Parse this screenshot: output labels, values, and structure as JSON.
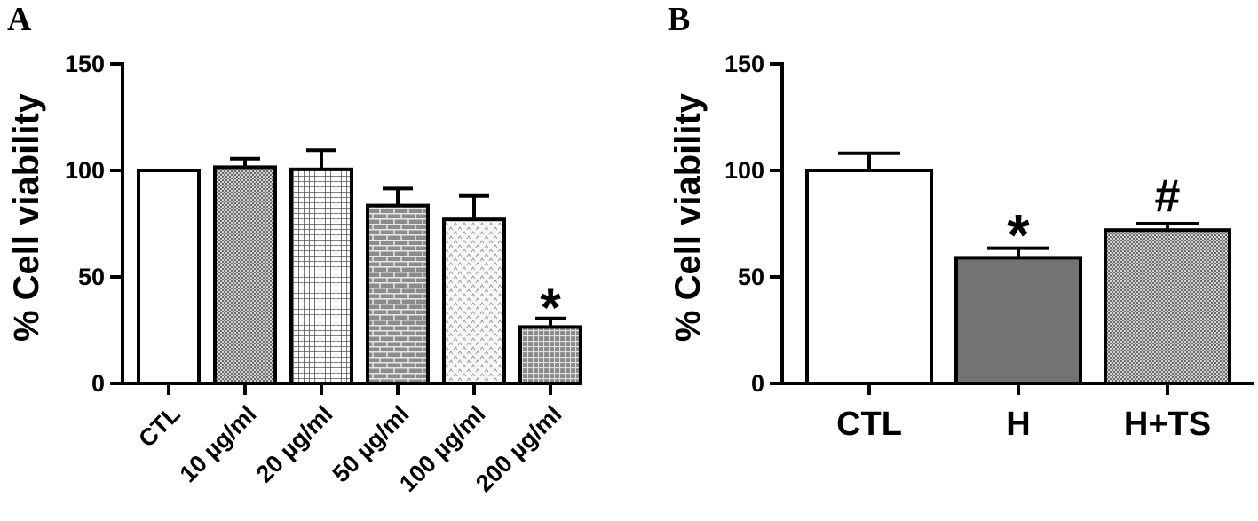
{
  "chart_data": [
    {
      "panel": "A",
      "type": "bar",
      "ylabel": "% Cell viability",
      "ylim": [
        0,
        150
      ],
      "yticks": [
        0,
        50,
        100,
        150
      ],
      "categories": [
        "CTL",
        "10 µg/ml",
        "20 µg/ml",
        "50 µg/ml",
        "100 µg/ml",
        "200 µg/ml"
      ],
      "values": [
        100,
        101.5,
        100.5,
        83.5,
        77,
        26.5
      ],
      "errors": [
        0,
        4,
        9,
        8,
        11,
        4
      ],
      "patterns": [
        "none",
        "cross-hatch-fine",
        "grid",
        "brick",
        "dots-light",
        "grid-dark"
      ],
      "annotations": [
        "",
        "",
        "",
        "",
        "",
        "*"
      ]
    },
    {
      "panel": "B",
      "type": "bar",
      "ylabel": "% Cell viability",
      "ylim": [
        0,
        150
      ],
      "yticks": [
        0,
        50,
        100,
        150
      ],
      "categories": [
        "CTL",
        "H",
        "H+TS"
      ],
      "values": [
        100,
        59,
        72
      ],
      "errors": [
        8,
        4.5,
        3
      ],
      "patterns": [
        "none",
        "solid-gray",
        "cross-hatch-fine"
      ],
      "annotations": [
        "",
        "*",
        "#"
      ]
    }
  ],
  "colors": {
    "bar_edge": "#000000",
    "solid_gray": "#737373",
    "hatch_ink": "#555555",
    "background": "#ffffff"
  }
}
